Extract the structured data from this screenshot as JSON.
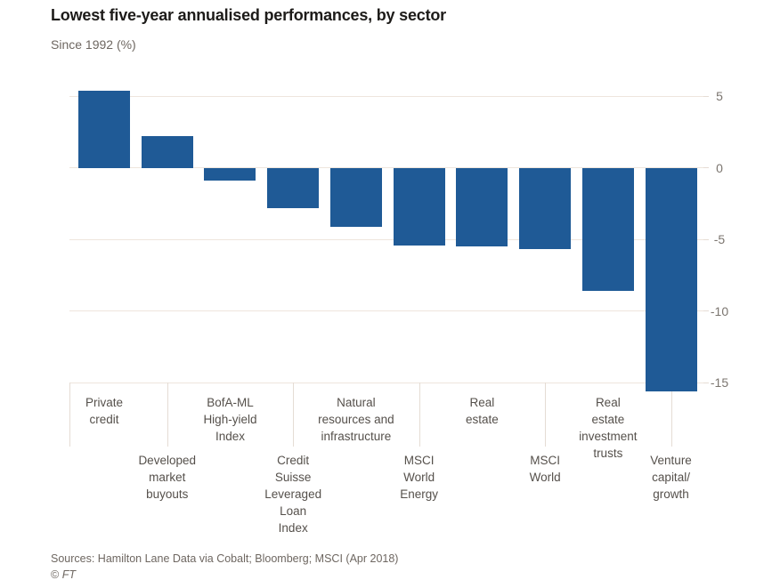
{
  "header": {
    "title": "Lowest five-year annualised performances, by sector",
    "subtitle": "Since 1992 (%)"
  },
  "chart_data": {
    "type": "bar",
    "title": "Lowest five-year annualised performances, by sector",
    "subtitle": "Since 1992 (%)",
    "unit": "%",
    "categories": [
      "Private credit",
      "Developed market buyouts",
      "BofA-ML High-yield Index",
      "Credit Suisse Leveraged Loan Index",
      "Natural resources and infrastructure",
      "MSCI World Energy",
      "Real estate",
      "MSCI World",
      "Real estate investment trusts",
      "Venture capital/growth"
    ],
    "category_label_lines": [
      [
        "Private",
        "credit"
      ],
      [
        "Developed",
        "market",
        "buyouts"
      ],
      [
        "BofA-ML",
        "High-yield",
        "Index"
      ],
      [
        "Credit",
        "Suisse",
        "Leveraged",
        "Loan",
        "Index"
      ],
      [
        "Natural",
        "resources and",
        "infrastructure"
      ],
      [
        "MSCI",
        "World",
        "Energy"
      ],
      [
        "Real",
        "estate"
      ],
      [
        "MSCI",
        "World"
      ],
      [
        "Real",
        "estate",
        "investment",
        "trusts"
      ],
      [
        "Venture",
        "capital/",
        "growth"
      ]
    ],
    "values": [
      5.4,
      2.2,
      -0.9,
      -2.8,
      -4.1,
      -5.4,
      -5.5,
      -5.7,
      -8.6,
      -15.6
    ],
    "y_ticks": [
      5,
      0,
      -5,
      -10,
      -15
    ],
    "ylim": [
      -15.7,
      5.9
    ],
    "grid": "horizontal",
    "axis_side": "right",
    "legend": "none",
    "bar_color": "#1f5a96",
    "gridline_color": "#eee5dd",
    "tick_line_color": "#e5dcd4",
    "x_label_color": "#55504b",
    "y_label_color": "#7b756f"
  },
  "footer": {
    "sources": "Sources: Hamilton Lane Data via Cobalt; Bloomberg; MSCI (Apr 2018)",
    "copyright_symbol": "© ",
    "copyright_name": "FT"
  }
}
